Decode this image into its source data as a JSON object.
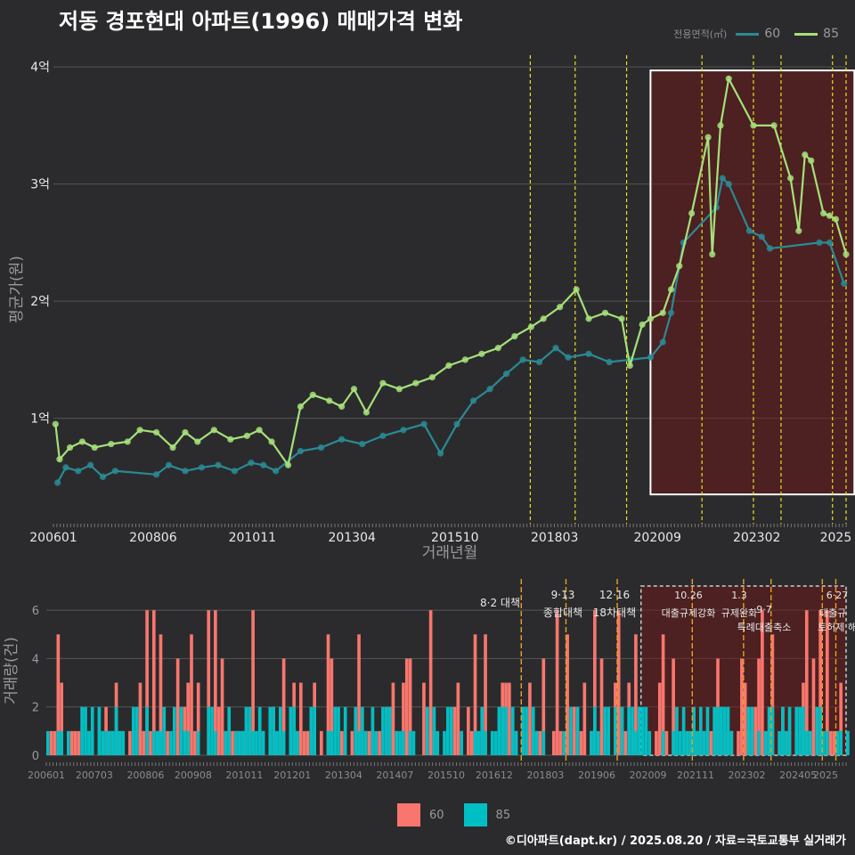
{
  "title": "저동 경포현대 아파트(1996) 매매가격 변화",
  "caption": "©디아파트(dapt.kr) / 2025.08.20 / 자료=국토교통부 실거래가",
  "legend_top": {
    "title": "전용면적(㎡)",
    "items": [
      {
        "label": "60",
        "color": "#2a8a95"
      },
      {
        "label": "85",
        "color": "#a6e07a"
      }
    ]
  },
  "legend_bottom": {
    "items": [
      {
        "label": "60",
        "color": "#f8766d"
      },
      {
        "label": "85",
        "color": "#00bfc4"
      }
    ]
  },
  "chart_data": [
    {
      "type": "line",
      "xlabel": "거래년월",
      "ylabel": "평균가(원)",
      "ylim": [
        0.1,
        4.1
      ],
      "y_tick_labels": [
        "1억",
        "2억",
        "3억",
        "4억"
      ],
      "y_ticks": [
        1,
        2,
        3,
        4
      ],
      "x_tick_labels": [
        "200601",
        "200806",
        "201011",
        "201304",
        "201510",
        "201803",
        "202009",
        "202302",
        "2025"
      ],
      "x_ticks": [
        2006.0,
        2008.42,
        2010.83,
        2013.25,
        2015.75,
        2018.17,
        2020.67,
        2023.08,
        2025.0
      ],
      "xlim": [
        2006.0,
        2025.25
      ],
      "vlines": [
        2017.58,
        2018.67,
        2019.92,
        2021.75,
        2023.0,
        2023.67,
        2024.92,
        2025.25
      ],
      "highlight_region": {
        "x": [
          2020.5,
          2025.5
        ],
        "y": [
          0.35,
          3.97
        ]
      },
      "grid": true,
      "series": [
        {
          "name": "60",
          "color": "#2a8a95",
          "points": [
            [
              2006.1,
              0.45
            ],
            [
              2006.3,
              0.58
            ],
            [
              2006.6,
              0.55
            ],
            [
              2006.9,
              0.6
            ],
            [
              2007.2,
              0.5
            ],
            [
              2007.5,
              0.55
            ],
            [
              2008.5,
              0.52
            ],
            [
              2008.8,
              0.6
            ],
            [
              2009.2,
              0.55
            ],
            [
              2009.6,
              0.58
            ],
            [
              2010.0,
              0.6
            ],
            [
              2010.4,
              0.55
            ],
            [
              2010.8,
              0.62
            ],
            [
              2011.1,
              0.6
            ],
            [
              2011.4,
              0.55
            ],
            [
              2012.0,
              0.72
            ],
            [
              2012.5,
              0.75
            ],
            [
              2013.0,
              0.82
            ],
            [
              2013.5,
              0.78
            ],
            [
              2014.0,
              0.85
            ],
            [
              2014.5,
              0.9
            ],
            [
              2015.0,
              0.95
            ],
            [
              2015.4,
              0.7
            ],
            [
              2015.8,
              0.95
            ],
            [
              2016.2,
              1.15
            ],
            [
              2016.6,
              1.25
            ],
            [
              2017.0,
              1.38
            ],
            [
              2017.4,
              1.5
            ],
            [
              2017.8,
              1.48
            ],
            [
              2018.2,
              1.6
            ],
            [
              2018.5,
              1.52
            ],
            [
              2019.0,
              1.55
            ],
            [
              2019.5,
              1.48
            ],
            [
              2020.0,
              1.5
            ],
            [
              2020.5,
              1.52
            ],
            [
              2020.8,
              1.65
            ],
            [
              2021.0,
              1.9
            ],
            [
              2021.3,
              2.5
            ],
            [
              2022.1,
              2.8
            ],
            [
              2022.25,
              3.05
            ],
            [
              2022.4,
              3.0
            ],
            [
              2022.9,
              2.6
            ],
            [
              2023.2,
              2.55
            ],
            [
              2023.4,
              2.45
            ],
            [
              2024.6,
              2.5
            ],
            [
              2024.85,
              2.5
            ],
            [
              2025.2,
              2.15
            ]
          ]
        },
        {
          "name": "85",
          "color": "#a6e07a",
          "points": [
            [
              2006.05,
              0.95
            ],
            [
              2006.15,
              0.65
            ],
            [
              2006.4,
              0.75
            ],
            [
              2006.7,
              0.8
            ],
            [
              2007.0,
              0.75
            ],
            [
              2007.4,
              0.78
            ],
            [
              2007.8,
              0.8
            ],
            [
              2008.1,
              0.9
            ],
            [
              2008.5,
              0.88
            ],
            [
              2008.9,
              0.75
            ],
            [
              2009.2,
              0.88
            ],
            [
              2009.5,
              0.8
            ],
            [
              2009.9,
              0.9
            ],
            [
              2010.3,
              0.82
            ],
            [
              2010.7,
              0.85
            ],
            [
              2011.0,
              0.9
            ],
            [
              2011.3,
              0.8
            ],
            [
              2011.7,
              0.6
            ],
            [
              2012.0,
              1.1
            ],
            [
              2012.3,
              1.2
            ],
            [
              2012.7,
              1.15
            ],
            [
              2013.0,
              1.1
            ],
            [
              2013.3,
              1.25
            ],
            [
              2013.6,
              1.05
            ],
            [
              2014.0,
              1.3
            ],
            [
              2014.4,
              1.25
            ],
            [
              2014.8,
              1.3
            ],
            [
              2015.2,
              1.35
            ],
            [
              2015.6,
              1.45
            ],
            [
              2016.0,
              1.5
            ],
            [
              2016.4,
              1.55
            ],
            [
              2016.8,
              1.6
            ],
            [
              2017.2,
              1.7
            ],
            [
              2017.6,
              1.78
            ],
            [
              2017.9,
              1.85
            ],
            [
              2018.3,
              1.95
            ],
            [
              2018.7,
              2.1
            ],
            [
              2019.0,
              1.85
            ],
            [
              2019.4,
              1.9
            ],
            [
              2019.8,
              1.85
            ],
            [
              2020.0,
              1.45
            ],
            [
              2020.3,
              1.8
            ],
            [
              2020.5,
              1.85
            ],
            [
              2020.8,
              1.9
            ],
            [
              2021.0,
              2.1
            ],
            [
              2021.2,
              2.3
            ],
            [
              2021.5,
              2.75
            ],
            [
              2021.9,
              3.4
            ],
            [
              2022.0,
              2.4
            ],
            [
              2022.2,
              3.5
            ],
            [
              2022.4,
              3.9
            ],
            [
              2023.0,
              3.5
            ],
            [
              2023.5,
              3.5
            ],
            [
              2023.9,
              3.05
            ],
            [
              2024.1,
              2.6
            ],
            [
              2024.25,
              3.25
            ],
            [
              2024.4,
              3.2
            ],
            [
              2024.7,
              2.75
            ],
            [
              2024.85,
              2.73
            ],
            [
              2025.0,
              2.7
            ],
            [
              2025.25,
              2.4
            ]
          ]
        }
      ]
    },
    {
      "type": "bar",
      "xlabel": "",
      "ylabel": "거래량(건)",
      "ylim": [
        0,
        7
      ],
      "y_tick_labels": [
        "0",
        "2",
        "4",
        "6"
      ],
      "y_ticks": [
        0,
        2,
        4,
        6
      ],
      "x_tick_labels": [
        "200601",
        "200703",
        "200806",
        "200908",
        "201011",
        "201201",
        "201304",
        "201407",
        "201510",
        "201612",
        "201803",
        "201906",
        "202009",
        "202111",
        "202302",
        "202405",
        "2025"
      ],
      "x_ticks": [
        2006.0,
        2007.17,
        2008.42,
        2009.58,
        2010.83,
        2012.0,
        2013.25,
        2014.5,
        2015.75,
        2016.92,
        2018.17,
        2019.42,
        2020.67,
        2021.83,
        2023.08,
        2024.33,
        2025.0
      ],
      "xlim": [
        2006.0,
        2025.5
      ],
      "highlight_region": {
        "x": [
          2020.5,
          2025.5
        ],
        "y": [
          0,
          7
        ]
      },
      "vlines": [
        2017.58,
        2018.67,
        2019.92,
        2021.75,
        2023.0,
        2023.67,
        2024.92,
        2025.25
      ],
      "annotations": [
        {
          "date": "8·2",
          "text": "대책"
        },
        {
          "date": "9·13",
          "text": "종합대책"
        },
        {
          "date": "12·16",
          "text": "18차대책"
        },
        {
          "date": "10.26",
          "text": "대출규제강화"
        },
        {
          "date": "1.3",
          "text": "규제완화"
        },
        {
          "date": "9·7",
          "text": "특례대출축소"
        },
        {
          "date": "",
          "text": "토허제 해제"
        },
        {
          "date": "6·27",
          "text": "대출규"
        }
      ],
      "series": [
        {
          "name": "60",
          "color": "#f8766d"
        },
        {
          "name": "85",
          "color": "#00bfc4"
        }
      ]
    }
  ]
}
